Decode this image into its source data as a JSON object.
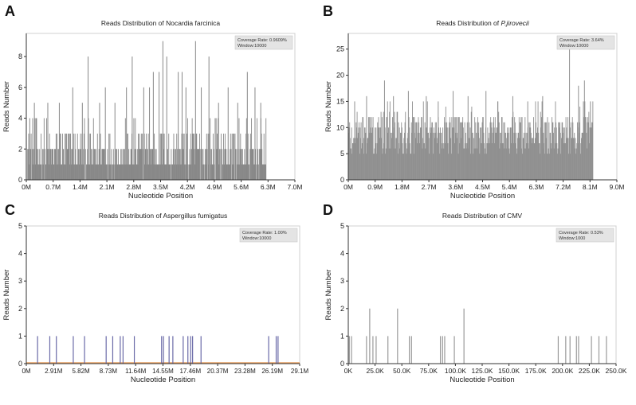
{
  "chart_data": [
    {
      "id": "A",
      "type": "bar",
      "panel_label": "A",
      "title": "Reads Distribution of Nocardia farcinica",
      "title_prefix": "",
      "title_species": "",
      "xlabel": "Nucleotide Position",
      "ylabel": "Reads Number",
      "xlim": [
        0,
        7.0
      ],
      "ylim": [
        0,
        9.5
      ],
      "xticks": [
        0,
        0.7,
        1.4,
        2.1,
        2.8,
        3.5,
        4.2,
        4.9,
        5.6,
        6.3,
        7.0
      ],
      "xtick_labels": [
        "0M",
        "0.7M",
        "1.4M",
        "2.1M",
        "2.8M",
        "3.5M",
        "4.2M",
        "4.9M",
        "5.6M",
        "6.3M",
        "7.0M"
      ],
      "yticks": [
        0,
        2,
        4,
        6,
        8
      ],
      "ytick_labels": [
        "0",
        "2",
        "4",
        "6",
        "8"
      ],
      "legend": {
        "line1": "Coverage Rate: 0.9609%",
        "line2": "Window:10000",
        "placement": "top-right"
      },
      "genome_end": 6.25,
      "bar_color": "#888888",
      "background_level": 1.6,
      "spikes": [
        {
          "x": 0.08,
          "y": 4
        },
        {
          "x": 0.2,
          "y": 5
        },
        {
          "x": 0.55,
          "y": 5
        },
        {
          "x": 0.85,
          "y": 5
        },
        {
          "x": 1.2,
          "y": 6
        },
        {
          "x": 1.45,
          "y": 5
        },
        {
          "x": 1.6,
          "y": 8
        },
        {
          "x": 1.9,
          "y": 5
        },
        {
          "x": 2.05,
          "y": 6
        },
        {
          "x": 2.3,
          "y": 5
        },
        {
          "x": 2.6,
          "y": 6
        },
        {
          "x": 2.75,
          "y": 8
        },
        {
          "x": 3.05,
          "y": 6
        },
        {
          "x": 3.2,
          "y": 6
        },
        {
          "x": 3.3,
          "y": 7
        },
        {
          "x": 3.45,
          "y": 7
        },
        {
          "x": 3.55,
          "y": 9
        },
        {
          "x": 3.65,
          "y": 8
        },
        {
          "x": 3.95,
          "y": 7
        },
        {
          "x": 4.05,
          "y": 7
        },
        {
          "x": 4.15,
          "y": 6
        },
        {
          "x": 4.4,
          "y": 9
        },
        {
          "x": 4.55,
          "y": 6
        },
        {
          "x": 4.75,
          "y": 8
        },
        {
          "x": 5.0,
          "y": 5
        },
        {
          "x": 5.25,
          "y": 6
        },
        {
          "x": 5.5,
          "y": 5
        },
        {
          "x": 5.75,
          "y": 7
        },
        {
          "x": 5.95,
          "y": 6
        },
        {
          "x": 6.1,
          "y": 5
        }
      ]
    },
    {
      "id": "B",
      "type": "bar",
      "panel_label": "B",
      "title": "Reads Distribution of P.jirovecii",
      "title_prefix": "Reads Distribution of ",
      "title_species": "P.jirovecii",
      "xlabel": "Nucleotide Position",
      "ylabel": "Reads Number",
      "xlim": [
        0,
        9.0
      ],
      "ylim": [
        0,
        28
      ],
      "xticks": [
        0,
        0.9,
        1.8,
        2.7,
        3.6,
        4.5,
        5.4,
        6.3,
        7.2,
        8.1,
        9.0
      ],
      "xtick_labels": [
        "0M",
        "0.9M",
        "1.8M",
        "2.7M",
        "3.6M",
        "4.5M",
        "5.4M",
        "6.3M",
        "7.2M",
        "8.1M",
        "9.0M"
      ],
      "yticks": [
        0,
        5,
        10,
        15,
        20,
        25
      ],
      "ytick_labels": [
        "0",
        "5",
        "10",
        "15",
        "20",
        "25"
      ],
      "legend": {
        "line1": "Coverage Rate: 3.64%",
        "line2": "Window:10000",
        "placement": "top-right"
      },
      "genome_end": 8.2,
      "bar_color": "#909090",
      "background_level": 9,
      "spikes": [
        {
          "x": 0.2,
          "y": 15
        },
        {
          "x": 0.6,
          "y": 16
        },
        {
          "x": 1.2,
          "y": 19
        },
        {
          "x": 1.5,
          "y": 16
        },
        {
          "x": 2.0,
          "y": 17
        },
        {
          "x": 2.6,
          "y": 16
        },
        {
          "x": 3.0,
          "y": 15
        },
        {
          "x": 3.5,
          "y": 17
        },
        {
          "x": 4.0,
          "y": 16
        },
        {
          "x": 4.6,
          "y": 17
        },
        {
          "x": 5.0,
          "y": 15
        },
        {
          "x": 5.5,
          "y": 16
        },
        {
          "x": 6.0,
          "y": 15
        },
        {
          "x": 6.5,
          "y": 16
        },
        {
          "x": 7.4,
          "y": 26
        },
        {
          "x": 7.7,
          "y": 18
        },
        {
          "x": 7.9,
          "y": 19
        },
        {
          "x": 8.1,
          "y": 15
        }
      ]
    },
    {
      "id": "C",
      "type": "bar",
      "panel_label": "C",
      "title": "Reads Distribution of Aspergillus fumigatus",
      "title_prefix": "",
      "title_species": "",
      "xlabel": "Nucleotide Position",
      "ylabel": "Reads Number",
      "xlim": [
        0,
        29.1
      ],
      "ylim": [
        0,
        5
      ],
      "xticks": [
        0,
        2.91,
        5.82,
        8.73,
        11.64,
        14.55,
        17.46,
        20.37,
        23.28,
        26.19,
        29.1
      ],
      "xtick_labels": [
        "0M",
        "2.91M",
        "5.82M",
        "8.73M",
        "11.64M",
        "14.55M",
        "17.46M",
        "20.37M",
        "23.28M",
        "26.19M",
        "29.1M"
      ],
      "yticks": [
        0,
        1,
        2,
        3,
        4,
        5
      ],
      "ytick_labels": [
        "0",
        "1",
        "2",
        "3",
        "4",
        "5"
      ],
      "legend": {
        "line1": "Coverage Rate: 1.00%",
        "line2": "Window:10000",
        "placement": "top-right"
      },
      "bar_color": "#6a6aa8",
      "baseline_color": "#e8a060",
      "bars": [
        {
          "x": 1.2,
          "y": 1
        },
        {
          "x": 2.5,
          "y": 1
        },
        {
          "x": 3.2,
          "y": 1
        },
        {
          "x": 5.0,
          "y": 1
        },
        {
          "x": 6.2,
          "y": 1
        },
        {
          "x": 8.5,
          "y": 1
        },
        {
          "x": 9.2,
          "y": 1
        },
        {
          "x": 10.0,
          "y": 1
        },
        {
          "x": 10.3,
          "y": 1
        },
        {
          "x": 11.5,
          "y": 1
        },
        {
          "x": 14.4,
          "y": 1
        },
        {
          "x": 14.6,
          "y": 1
        },
        {
          "x": 15.2,
          "y": 1
        },
        {
          "x": 15.6,
          "y": 1
        },
        {
          "x": 16.7,
          "y": 1
        },
        {
          "x": 17.2,
          "y": 1
        },
        {
          "x": 17.5,
          "y": 1
        },
        {
          "x": 17.7,
          "y": 1
        },
        {
          "x": 18.6,
          "y": 1
        },
        {
          "x": 25.8,
          "y": 1
        },
        {
          "x": 26.6,
          "y": 1
        },
        {
          "x": 26.8,
          "y": 1
        }
      ]
    },
    {
      "id": "D",
      "type": "bar",
      "panel_label": "D",
      "title": "Reads Distribution of CMV",
      "title_prefix": "",
      "title_species": "",
      "xlabel": "Nucleotide Position",
      "ylabel": "Reads Number",
      "xlim": [
        0,
        250
      ],
      "ylim": [
        0,
        5
      ],
      "xticks": [
        0,
        25,
        50,
        75,
        100,
        125,
        150,
        175,
        200,
        225,
        250
      ],
      "xtick_labels": [
        "0K",
        "25.0K",
        "50.0K",
        "75.0K",
        "100.0K",
        "125.0K",
        "150.0K",
        "175.0K",
        "200.0K",
        "225.0K",
        "250.0K"
      ],
      "yticks": [
        0,
        1,
        2,
        3,
        4,
        5
      ],
      "ytick_labels": [
        "0",
        "1",
        "2",
        "3",
        "4",
        "5"
      ],
      "legend": {
        "line1": "Coverage Rate: 0.53%",
        "line2": "Window:1000",
        "placement": "top-right"
      },
      "bar_color": "#9a9a9a",
      "bars": [
        {
          "x": 1,
          "y": 1
        },
        {
          "x": 3,
          "y": 1
        },
        {
          "x": 17,
          "y": 1
        },
        {
          "x": 20,
          "y": 2
        },
        {
          "x": 23,
          "y": 1
        },
        {
          "x": 26,
          "y": 1
        },
        {
          "x": 37,
          "y": 1
        },
        {
          "x": 46,
          "y": 2
        },
        {
          "x": 57,
          "y": 1
        },
        {
          "x": 59,
          "y": 1
        },
        {
          "x": 86,
          "y": 1
        },
        {
          "x": 88,
          "y": 1
        },
        {
          "x": 90,
          "y": 1
        },
        {
          "x": 99,
          "y": 1
        },
        {
          "x": 108,
          "y": 2
        },
        {
          "x": 196,
          "y": 1
        },
        {
          "x": 203,
          "y": 1
        },
        {
          "x": 207,
          "y": 1
        },
        {
          "x": 213,
          "y": 1
        },
        {
          "x": 215,
          "y": 1
        },
        {
          "x": 227,
          "y": 1
        },
        {
          "x": 234,
          "y": 1
        },
        {
          "x": 241,
          "y": 1
        }
      ]
    }
  ]
}
